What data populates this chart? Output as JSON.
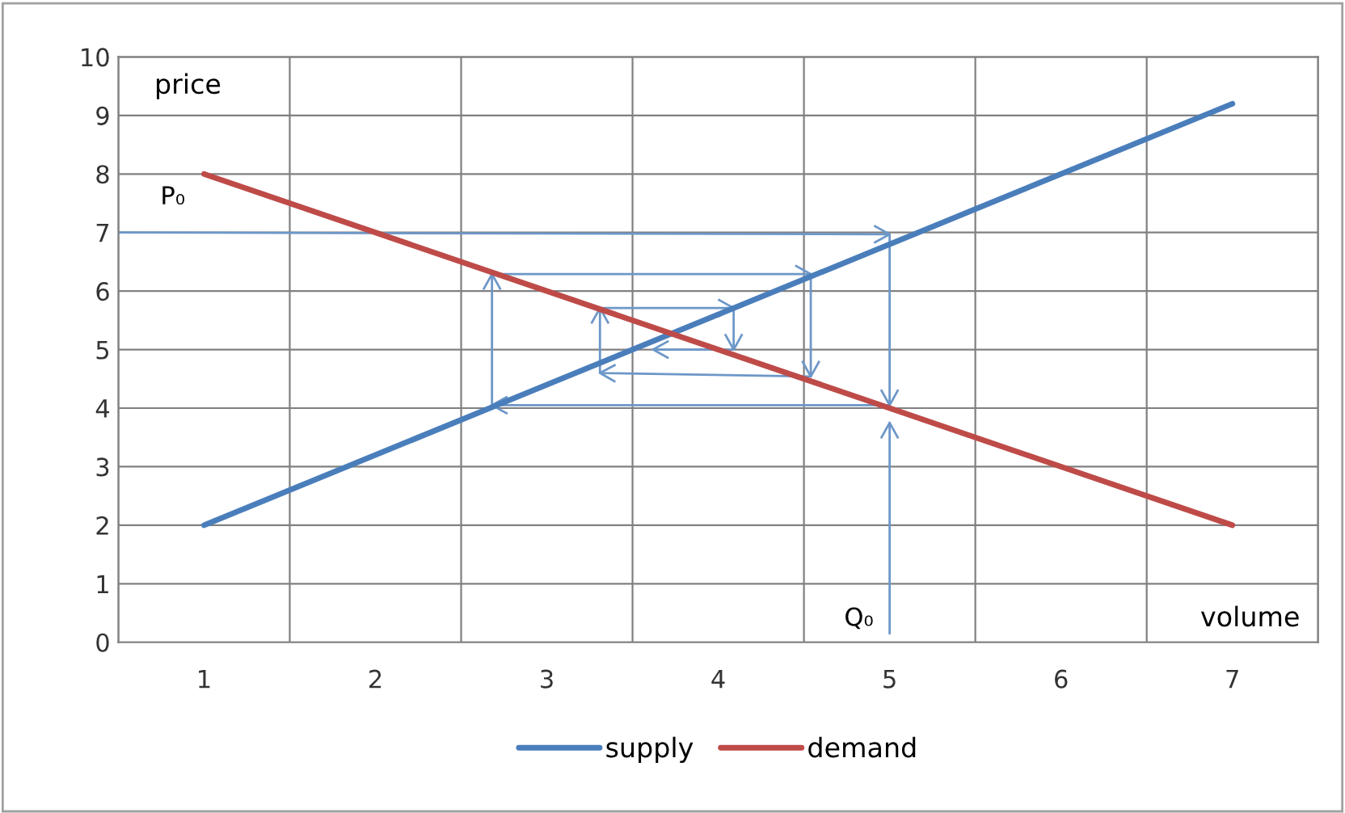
{
  "chart_data": {
    "type": "line",
    "xlabel": "volume",
    "ylabel": "price",
    "xlim": [
      0.5,
      7.5
    ],
    "ylim": [
      0,
      10
    ],
    "xticks": [
      {
        "value": 0.5,
        "label": null
      },
      1,
      {
        "value": 1.5,
        "label": null
      },
      2,
      {
        "value": 2.5,
        "label": null
      },
      3,
      {
        "value": 3.5,
        "label": null
      },
      4,
      {
        "value": 4.5,
        "label": null
      },
      5,
      {
        "value": 5.5,
        "label": null
      },
      6,
      {
        "value": 6.5,
        "label": null
      },
      7,
      {
        "value": 7.5,
        "label": null
      }
    ],
    "yticks": [
      0,
      1,
      2,
      3,
      4,
      5,
      6,
      7,
      8,
      9,
      10
    ],
    "grid": true,
    "legend": "bottom",
    "marker": "none",
    "line_style": "solid",
    "series": [
      {
        "name": "supply",
        "color": "#4a7ebb",
        "x": [
          1,
          7
        ],
        "values": [
          2,
          9.2
        ]
      },
      {
        "name": "demand",
        "color": "#be4b48",
        "x": [
          1,
          7
        ],
        "values": [
          8,
          2
        ]
      },
      {
        "color": "#6d97c8",
        "x": [
          0.5,
          5.0,
          5.0,
          2.68,
          2.68,
          4.54,
          4.54,
          3.31,
          3.31,
          4.09,
          4.09,
          3.62
        ],
        "values": [
          7.0,
          6.97,
          4.05,
          4.05,
          6.29,
          6.29,
          4.54,
          4.6,
          5.71,
          5.71,
          5.0,
          5.0
        ]
      },
      {
        "color": "#6d97c8",
        "x": [
          5.0,
          5.0
        ],
        "values": [
          0.15,
          3.75
        ]
      }
    ],
    "annotations": [
      "P₀",
      "Q₀"
    ]
  }
}
